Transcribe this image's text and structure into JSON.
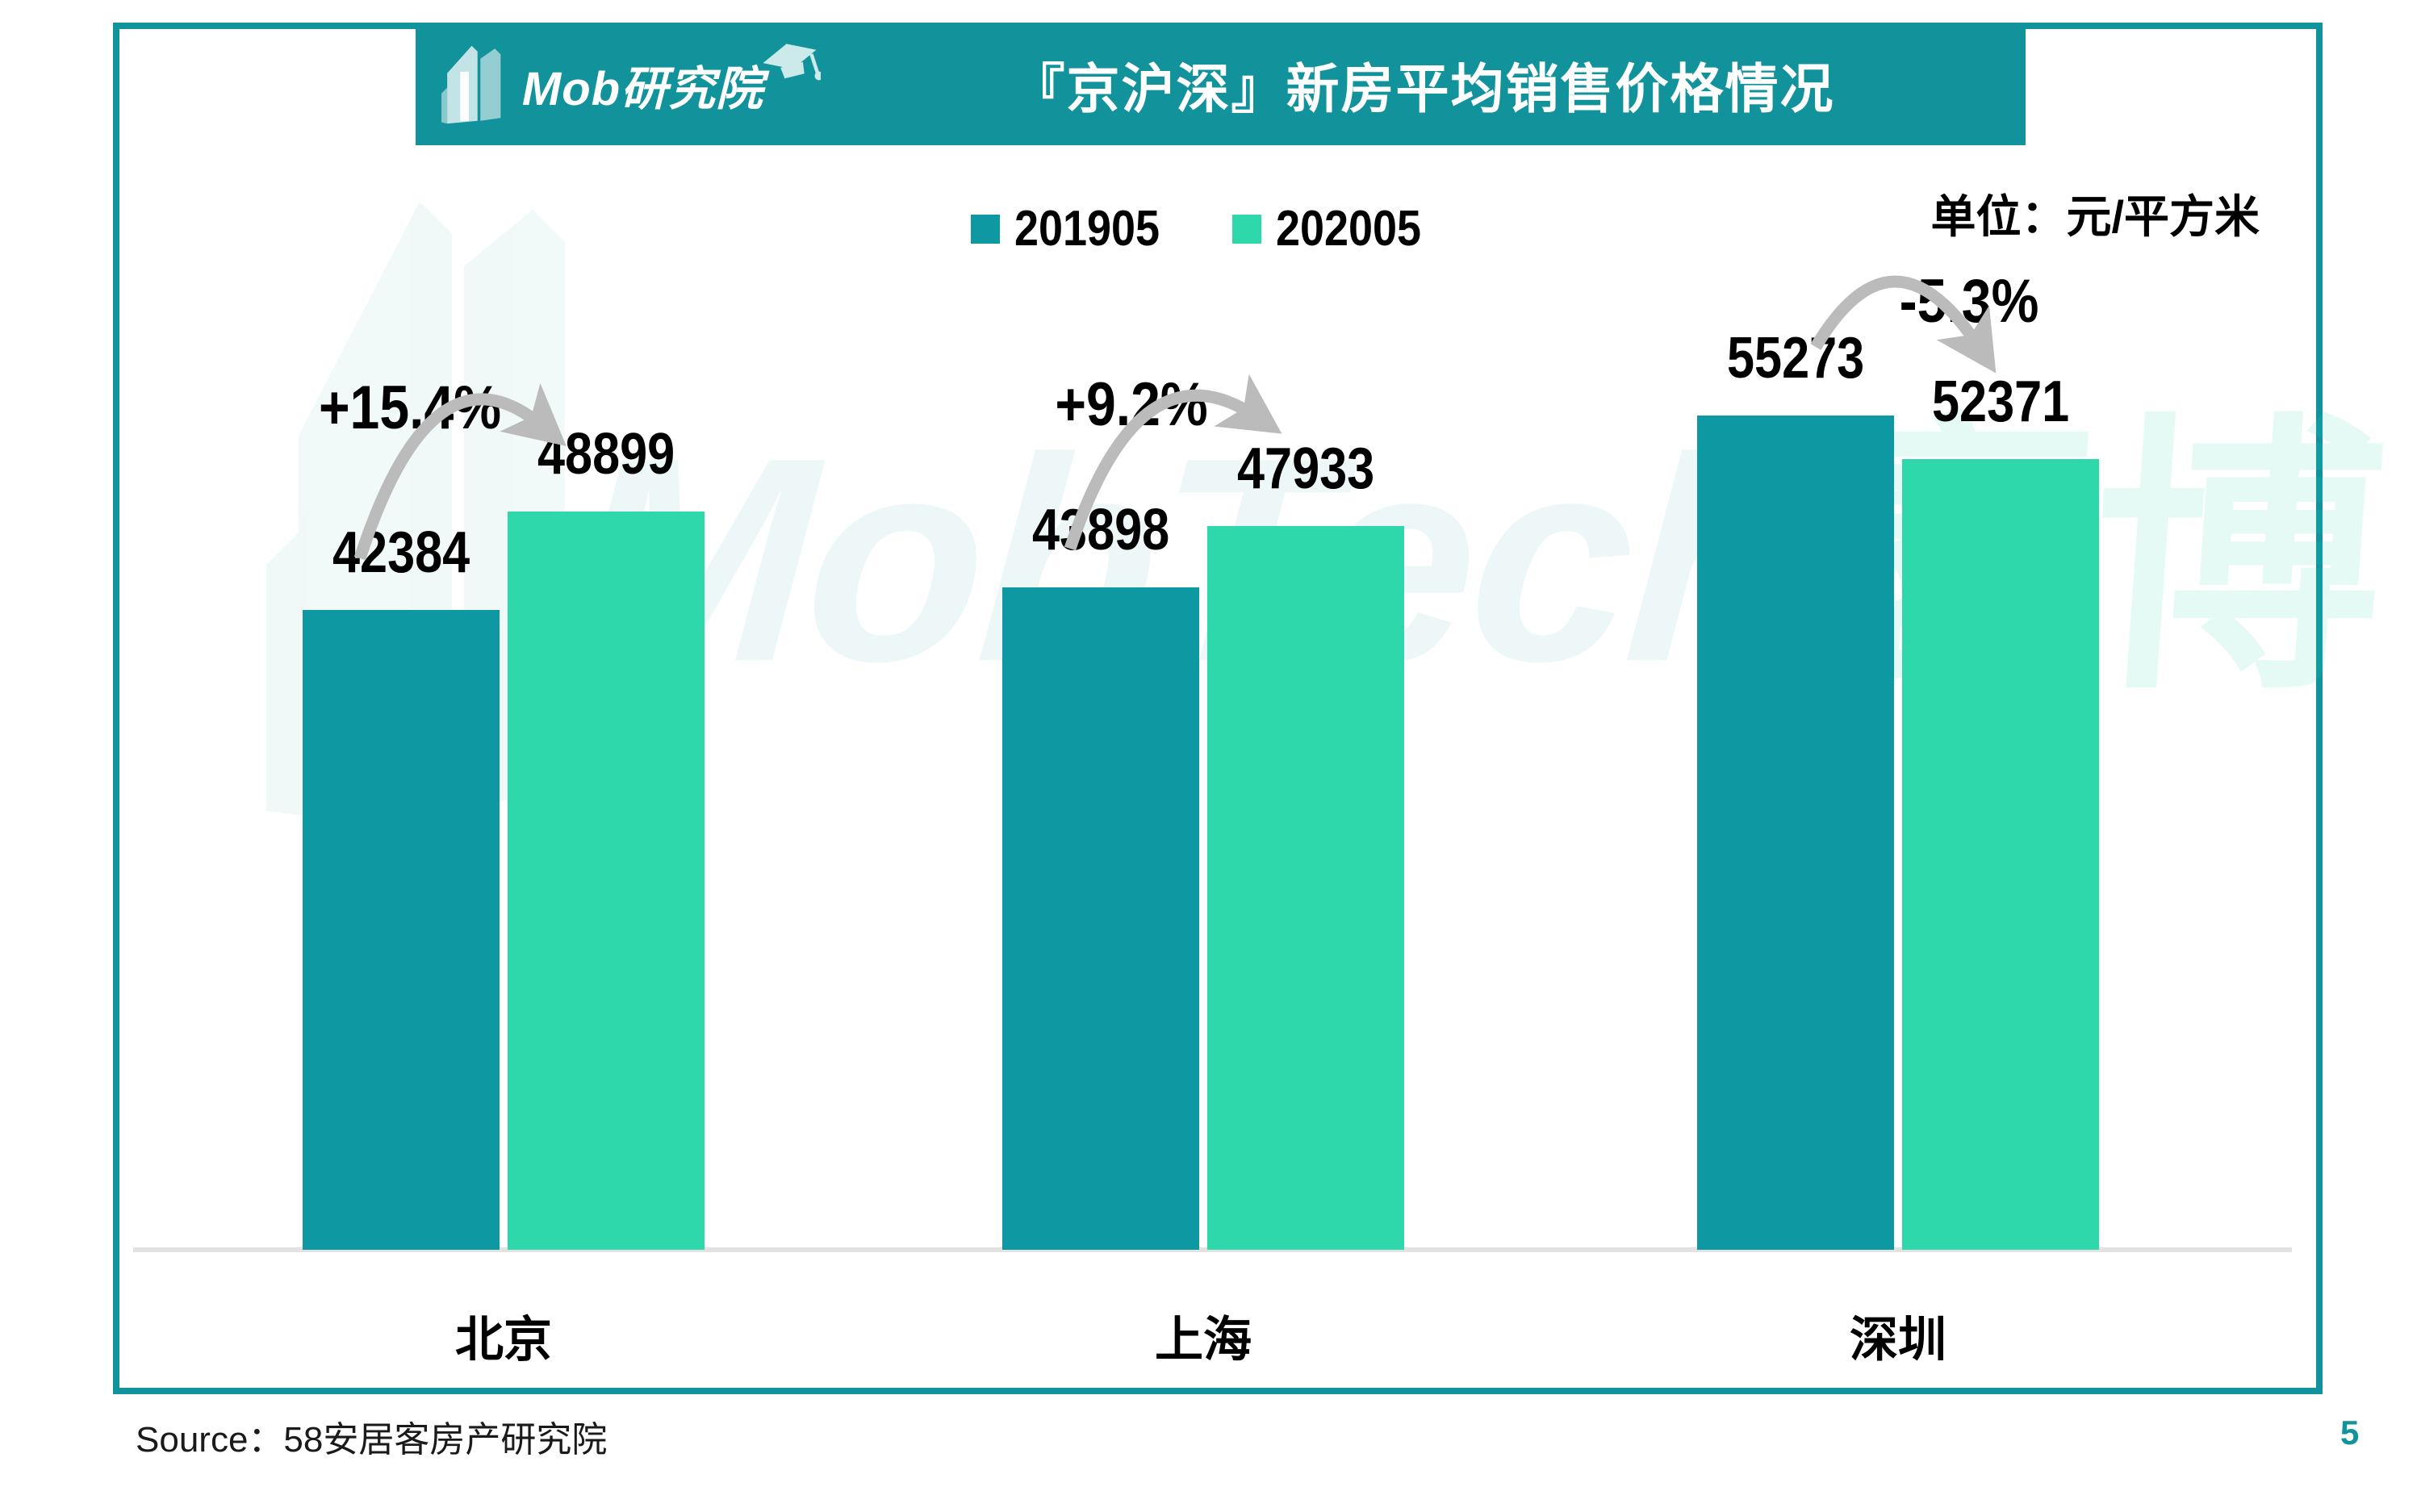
{
  "header": {
    "logo_text": "Mob研究院",
    "title": "『京沪深』新房平均销售价格情况"
  },
  "legend": [
    {
      "label": "201905",
      "color": "#0E98A2"
    },
    {
      "label": "202005",
      "color": "#2FD8AA"
    }
  ],
  "unit_label": "单位：元/平方米",
  "watermark": {
    "text_latin": "MobTech",
    "text_cjk": "袤博"
  },
  "source": "Source：58安居客房产研究院",
  "page_number": "5",
  "colors": {
    "frame_teal": "#11939B",
    "banner_teal": "#12939B",
    "series_2019": "#0E98A2",
    "series_2020": "#2FD8AA",
    "arrow_gray": "#BBBBBB",
    "baseline_gray": "#E2E2E2"
  },
  "chart_data": {
    "type": "bar",
    "title": "『京沪深』新房平均销售价格情况",
    "unit": "元/平方米",
    "categories": [
      "北京",
      "上海",
      "深圳"
    ],
    "series": [
      {
        "name": "201905",
        "color": "#0E98A2",
        "values": [
          42384,
          43898,
          55273
        ]
      },
      {
        "name": "202005",
        "color": "#2FD8AA",
        "values": [
          48899,
          47933,
          52371
        ]
      }
    ],
    "change_labels": [
      "+15.4%",
      "+9.2%",
      "-5.3%"
    ],
    "ylim": [
      0,
      58000
    ],
    "grid": false,
    "legend_position": "top-center"
  }
}
